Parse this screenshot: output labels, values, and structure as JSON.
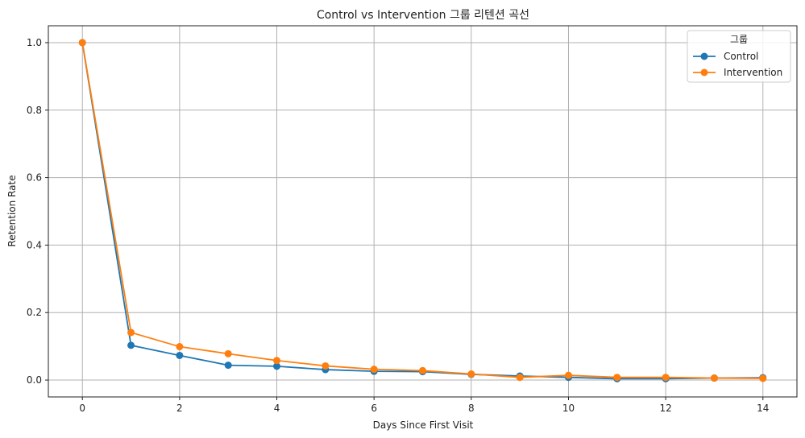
{
  "chart_data": {
    "type": "line",
    "title": "Control vs Intervention 그룹 리텐션 곡선",
    "xlabel": "Days Since First Visit",
    "ylabel": "Retention Rate",
    "x": [
      0,
      1,
      2,
      3,
      4,
      5,
      6,
      7,
      8,
      9,
      10,
      11,
      12,
      13,
      14
    ],
    "xlim": [
      -0.7,
      14.7
    ],
    "ylim": [
      -0.05,
      1.05
    ],
    "xticks": [
      "0",
      "2",
      "4",
      "6",
      "8",
      "10",
      "12",
      "14"
    ],
    "yticks": [
      "0.0",
      "0.2",
      "0.4",
      "0.6",
      "0.8",
      "1.0"
    ],
    "grid": true,
    "legend": {
      "title": "그룹",
      "placement": "top-right"
    },
    "series": [
      {
        "name": "Control",
        "color": "#1f77b4",
        "values": [
          1.0,
          0.103,
          0.073,
          0.044,
          0.041,
          0.031,
          0.026,
          0.025,
          0.017,
          0.012,
          0.008,
          0.004,
          0.004,
          0.006,
          0.007
        ]
      },
      {
        "name": "Intervention",
        "color": "#ff7f0e",
        "values": [
          1.0,
          0.141,
          0.099,
          0.078,
          0.058,
          0.042,
          0.032,
          0.028,
          0.018,
          0.008,
          0.014,
          0.008,
          0.008,
          0.006,
          0.005
        ]
      }
    ]
  }
}
